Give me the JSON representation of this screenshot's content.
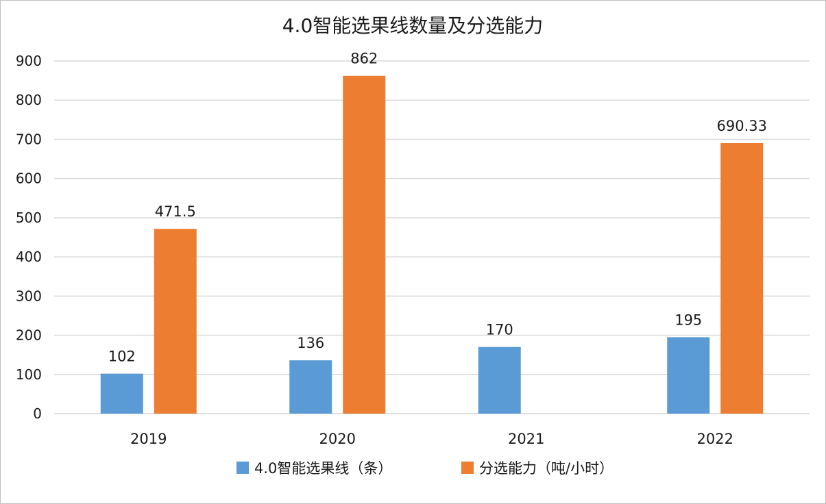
{
  "chart_data": {
    "type": "bar",
    "title": "4.0智能选果线数量及分选能力",
    "categories": [
      "2019",
      "2020",
      "2021",
      "2022"
    ],
    "series": [
      {
        "name": "4.0智能选果线（条）",
        "values": [
          102,
          136,
          170,
          195
        ],
        "labels": [
          "102",
          "136",
          "170",
          "195"
        ],
        "color": "#5b9bd5"
      },
      {
        "name": "分选能力（吨/小时）",
        "values": [
          471.5,
          862,
          null,
          690.33
        ],
        "labels": [
          "471.5",
          "862",
          "",
          "690.33"
        ],
        "color": "#ed7d31"
      }
    ],
    "yticks": [
      "0",
      "100",
      "200",
      "300",
      "400",
      "500",
      "600",
      "700",
      "800",
      "900"
    ],
    "ylim": [
      0,
      900
    ],
    "grid": true,
    "legend_position": "bottom"
  }
}
